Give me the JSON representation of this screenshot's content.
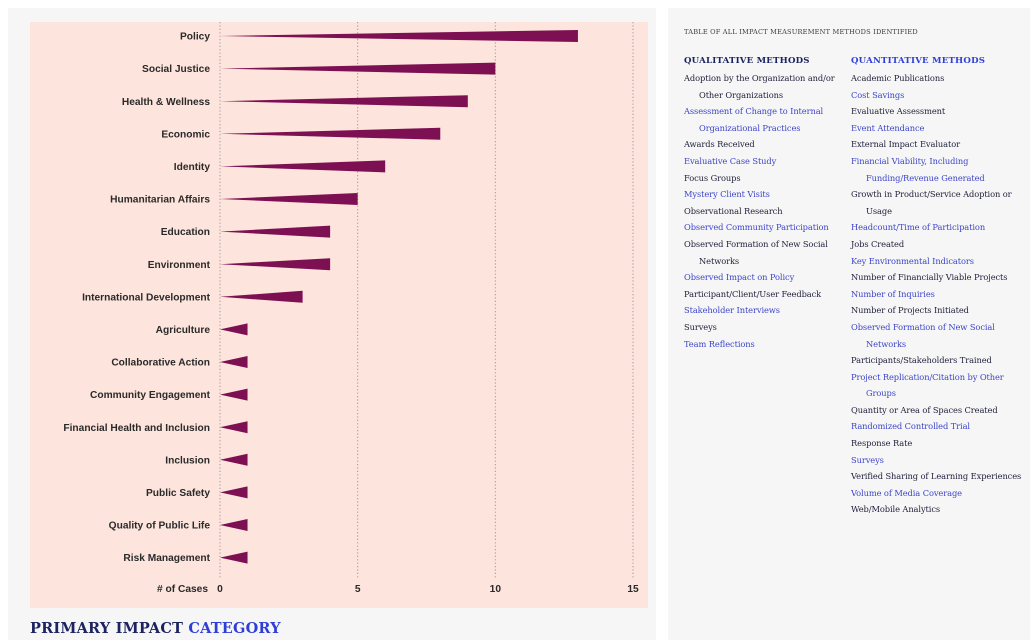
{
  "chart_data": {
    "type": "bar",
    "orientation": "horizontal",
    "categories": [
      "Policy",
      "Social Justice",
      "Health & Wellness",
      "Economic",
      "Identity",
      "Humanitarian Affairs",
      "Education",
      "Environment",
      "International Development",
      "Agriculture",
      "Collaborative Action",
      "Community Engagement",
      "Financial Health and Inclusion",
      "Inclusion",
      "Public Safety",
      "Quality of Public Life",
      "Risk Management"
    ],
    "values": [
      13,
      10,
      9,
      8,
      6,
      5,
      4,
      4,
      3,
      1,
      1,
      1,
      1,
      1,
      1,
      1,
      1
    ],
    "xlabel": "# of Cases",
    "xlim": [
      0,
      15
    ],
    "xticks": [
      0,
      5,
      10,
      15
    ],
    "grid": "vertical dotted",
    "title": "PRIMARY IMPACT CATEGORY",
    "title_parts": [
      "PRIMARY IMPACT",
      "CATEGORY"
    ],
    "colors": {
      "bar": "#7d1052",
      "plot_background": "#fde4dc",
      "grid": "#9a9a9a"
    }
  },
  "methods_table": {
    "title": "TABLE OF ALL IMPACT MEASUREMENT METHODS IDENTIFIED",
    "qualitative": {
      "header": "QUALITATIVE METHODS",
      "items": [
        "Adoption by the Organization and/or Other Organizations",
        "Assessment of Change to Internal Organizational Practices",
        "Awards Received",
        "Evaluative Case Study",
        "Focus Groups",
        "Mystery Client Visits",
        "Observational Research",
        "Observed Community Participation",
        "Observed Formation of New Social Networks",
        "Observed Impact on Policy",
        "Participant/Client/User Feedback",
        "Stakeholder Interviews",
        "Surveys",
        "Team Reflections"
      ]
    },
    "quantitative": {
      "header": "QUANTITATIVE METHODS",
      "items": [
        "Academic Publications",
        "Cost Savings",
        "Evaluative Assessment",
        "Event Attendance",
        "External Impact Evaluator",
        "Financial Viability, Including Funding/Revenue Generated",
        "Growth in Product/Service Adoption or Usage",
        "Headcount/Time of Participation",
        "Jobs Created",
        "Key Environmental Indicators",
        "Number of Financially Viable Projects",
        "Number of Inquiries",
        "Number of Projects Initiated",
        "Observed Formation of New Social Networks",
        "Participants/Stakeholders Trained",
        "Project Replication/Citation by Other Groups",
        "Quantity or Area of Spaces Created",
        "Randomized Controlled Trial",
        "Response Rate",
        "Surveys",
        "Verified Sharing of Learning Experiences",
        "Volume of Media Coverage",
        "Web/Mobile Analytics"
      ]
    }
  }
}
